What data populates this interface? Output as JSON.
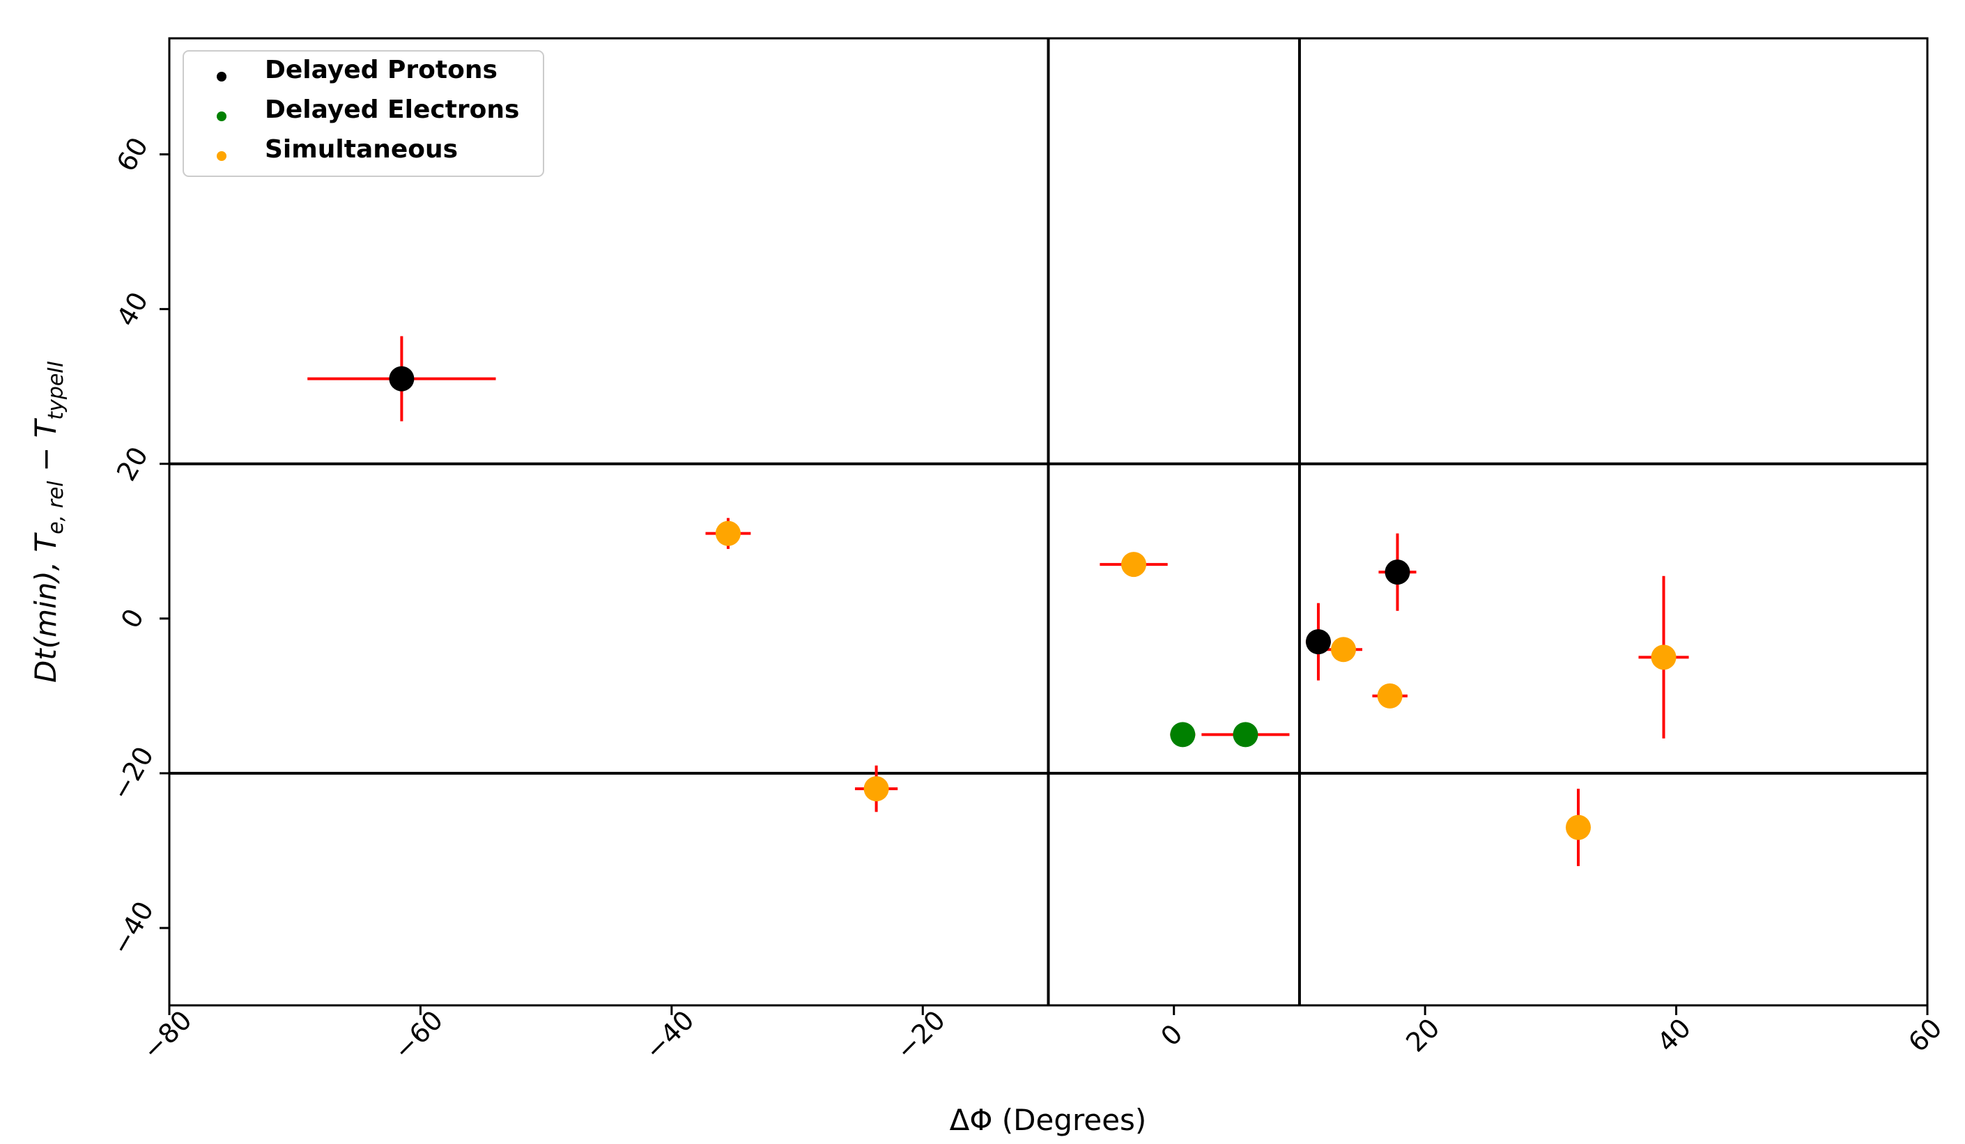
{
  "chart_data": {
    "type": "scatter",
    "xlabel": "ΔΦ (Degrees)",
    "ylabel_parts": {
      "prefix": "Dt(min), T",
      "sub1": "e, rel",
      "mid": " − T",
      "sub2": "typeII"
    },
    "xlim": [
      -80,
      60
    ],
    "ylim": [
      -50,
      75
    ],
    "xticks": [
      -80,
      -60,
      -40,
      -20,
      0,
      20,
      40,
      60
    ],
    "yticks": [
      -40,
      -20,
      0,
      20,
      40,
      60
    ],
    "xtick_labels": [
      "−80",
      "−60",
      "−40",
      "−20",
      "0",
      "20",
      "40",
      "60"
    ],
    "ytick_labels": [
      "−40",
      "−20",
      "0",
      "20",
      "40",
      "60"
    ],
    "grid": false,
    "reference_lines": {
      "vertical": [
        -10,
        10
      ],
      "horizontal": [
        -20,
        20
      ]
    },
    "legend_position": "top-left",
    "errorbar_color": "#ff0000",
    "series": [
      {
        "name": "Delayed Protons",
        "color": "#000000",
        "points": [
          {
            "x": -61.5,
            "y": 31,
            "xerr": 7.5,
            "yerr": 5.5
          },
          {
            "x": 11.5,
            "y": -3,
            "xerr": 1.0,
            "yerr": 5.0
          },
          {
            "x": 17.8,
            "y": 6,
            "xerr": 1.5,
            "yerr": 5.0
          }
        ]
      },
      {
        "name": "Delayed Electrons",
        "color": "#008000",
        "points": [
          {
            "x": 0.7,
            "y": -15,
            "xerr": 1.0,
            "yerr": 0.8
          },
          {
            "x": 5.7,
            "y": -15,
            "xerr": 3.5,
            "yerr": 0.8
          }
        ]
      },
      {
        "name": "Simultaneous",
        "color": "#ffa500",
        "points": [
          {
            "x": -35.5,
            "y": 11,
            "xerr": 1.8,
            "yerr": 2.0
          },
          {
            "x": -23.7,
            "y": -22,
            "xerr": 1.7,
            "yerr": 3.0
          },
          {
            "x": -3.2,
            "y": 7,
            "xerr": 2.7,
            "yerr": 0.8
          },
          {
            "x": 13.5,
            "y": -4,
            "xerr": 1.5,
            "yerr": 1.2
          },
          {
            "x": 17.2,
            "y": -10,
            "xerr": 1.4,
            "yerr": 1.2
          },
          {
            "x": 32.2,
            "y": -27,
            "xerr": 0.5,
            "yerr": 5.0
          },
          {
            "x": 39.0,
            "y": -5,
            "xerr": 2.0,
            "yerr": 10.5
          }
        ]
      }
    ]
  }
}
